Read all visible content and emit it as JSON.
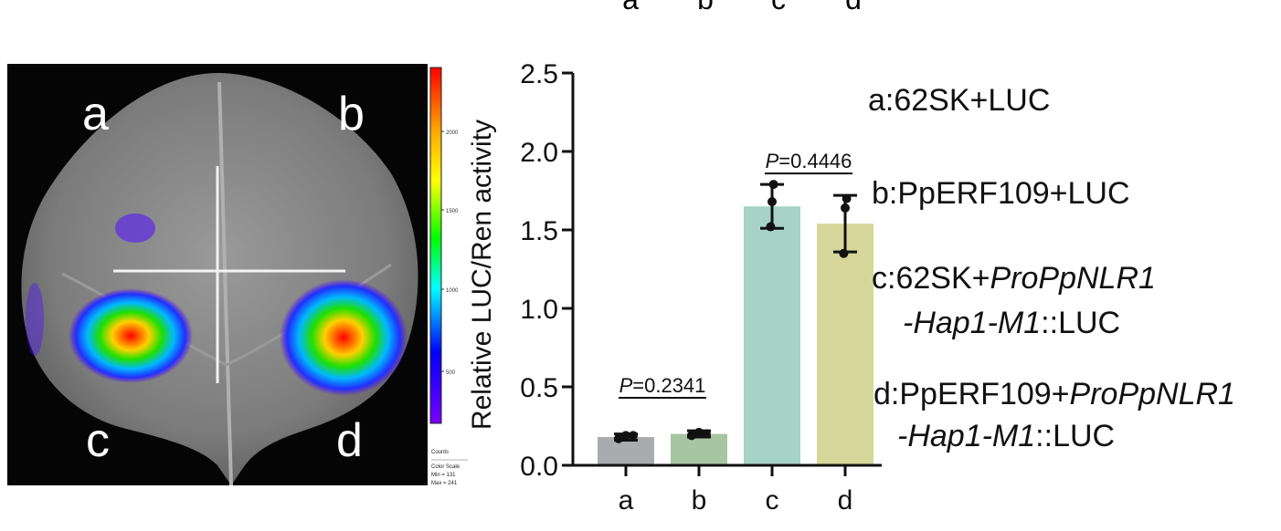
{
  "top_labels": [
    "a",
    "b",
    "c",
    "d"
  ],
  "leaf": {
    "labels": [
      "a",
      "b",
      "c",
      "d"
    ]
  },
  "colorbar": {
    "ticks": [
      "2000",
      "1500",
      "1000",
      "500"
    ],
    "footer": [
      "Counts",
      "Color Scale",
      "Min = 131",
      "Max = 241"
    ],
    "colors": [
      "#ff0000",
      "#ffaa00",
      "#ffff00",
      "#00ff00",
      "#00ffff",
      "#0000ff",
      "#7a00ff"
    ]
  },
  "chart_data": {
    "type": "bar",
    "categories": [
      "a",
      "b",
      "c",
      "d"
    ],
    "values": [
      0.18,
      0.2,
      1.65,
      1.54
    ],
    "error": [
      0.02,
      0.02,
      0.14,
      0.18
    ],
    "points": [
      [
        0.17,
        0.19,
        0.19
      ],
      [
        0.19,
        0.21,
        0.2
      ],
      [
        1.52,
        1.68,
        1.79
      ],
      [
        1.35,
        1.64,
        1.7
      ]
    ],
    "colors": [
      "#a9abaf",
      "#a8c5a2",
      "#a6d3c6",
      "#d7d69a"
    ],
    "ylabel": "Relative LUC/Ren activity",
    "ylim": [
      0,
      2.5
    ],
    "yticks": [
      "0.0",
      "0.5",
      "1.0",
      "1.5",
      "2.0",
      "2.5"
    ],
    "grid": false,
    "annotations": [
      {
        "pair": [
          0,
          1
        ],
        "p_label": "P",
        "p_value": "=0.2341",
        "y": 0.43
      },
      {
        "pair": [
          2,
          3
        ],
        "p_label": "P",
        "p_value": "=0.4446",
        "y": 1.86
      }
    ]
  },
  "legend": {
    "items": [
      {
        "parts": [
          {
            "t": "a:62SK+LUC",
            "i": false
          }
        ]
      },
      {
        "parts": [
          {
            "t": "b:PpERF109+LUC",
            "i": false
          }
        ]
      },
      {
        "parts": [
          {
            "t": "c:62SK+",
            "i": false
          },
          {
            "t": "ProPpNLR1",
            "i": true
          }
        ]
      },
      {
        "parts": [
          {
            "t": "-Hap1-M1",
            "i": true
          },
          {
            "t": "::LUC",
            "i": false
          }
        ]
      },
      {
        "parts": [
          {
            "t": "d:PpERF109+",
            "i": false
          },
          {
            "t": "ProPpNLR1",
            "i": true
          }
        ]
      },
      {
        "parts": [
          {
            "t": "-Hap1-M1",
            "i": true
          },
          {
            "t": "::LUC",
            "i": false
          }
        ]
      }
    ]
  }
}
